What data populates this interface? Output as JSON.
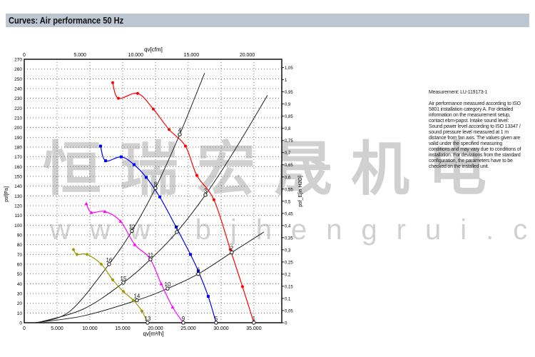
{
  "header": {
    "title": "Curves: Air performance 50 Hz"
  },
  "info": {
    "measurement": "Measurement: LU-119173-1",
    "lines": [
      "Air performance measured according to ISO",
      "5801 installation category A. For detailed",
      "information on the measurement setup,",
      "contact ebm-papst. Intake sound level:",
      "Sound power level according to ISO 13347 /",
      "sound pressure level measured at 1 m",
      "distance from fan axis. The values given are",
      "valid under the specified measuring",
      "conditions and may vary due to conditions of",
      "installation. For deviations from the standard",
      "configuration, the parameters have to be",
      "checked on the installed unit."
    ]
  },
  "watermark": {
    "text": "恒瑞宏晟机电",
    "url": "www.bjhengrui.cn"
  },
  "chart_data": {
    "type": "line",
    "xlabel": "qv[m³/h]",
    "x2label": "qv[cfm]",
    "ylabel": "psf[Pa]",
    "y2label": "psf_E[in H2O]",
    "xlim": [
      0,
      39250
    ],
    "ylim": [
      0,
      270
    ],
    "y2lim": [
      0,
      1.084
    ],
    "xticks": [
      0,
      5000,
      10000,
      15000,
      20000,
      25000,
      30000,
      35000
    ],
    "xtick_labels": [
      "0",
      "5.000",
      "10.000",
      "15.000",
      "20.000",
      "25.000",
      "30.000",
      "35.000"
    ],
    "x2ticks": [
      0,
      5000,
      10000,
      15000,
      20000
    ],
    "x2tick_labels": [
      "0",
      "5.000",
      "10.000",
      "15.000",
      "20.000"
    ],
    "y2ticks": [
      0,
      0.05,
      0.1,
      0.15,
      0.2,
      0.25,
      0.3,
      0.35,
      0.4,
      0.45,
      0.5,
      0.55,
      0.6,
      0.65,
      0.7,
      0.75,
      0.8,
      0.85,
      0.9,
      0.95,
      1,
      1.05
    ],
    "y2tick_labels": [
      "0",
      "0,05",
      "0,1",
      "0,15",
      "0,2",
      "0,25",
      "0,3",
      "0,35",
      "0,4",
      "0,45",
      "0,5",
      "0,55",
      "0,6",
      "0,65",
      "0,7",
      "0,75",
      "0,8",
      "0,85",
      "0,9",
      "0,95",
      "1",
      "1,05"
    ],
    "grid": true,
    "series": [
      {
        "color": "#ff0000",
        "marker": "circle",
        "points": [
          [
            13480,
            246
          ],
          [
            14350,
            230
          ],
          [
            17280,
            235
          ],
          [
            19670,
            219
          ],
          [
            22070,
            198
          ],
          [
            24570,
            181
          ],
          [
            26300,
            151
          ],
          [
            28910,
            126
          ],
          [
            31410,
            75
          ],
          [
            33260,
            37
          ],
          [
            35000,
            0
          ]
        ]
      },
      {
        "color": "#0000ff",
        "marker": "square",
        "points": [
          [
            11630,
            181
          ],
          [
            12390,
            166
          ],
          [
            14780,
            170
          ],
          [
            16740,
            162
          ],
          [
            18590,
            149
          ],
          [
            20650,
            129
          ],
          [
            23150,
            98
          ],
          [
            25330,
            70
          ],
          [
            26520,
            53
          ],
          [
            28040,
            27
          ],
          [
            29240,
            0
          ]
        ]
      },
      {
        "color": "#ff00ff",
        "marker": "triangle",
        "points": [
          [
            9460,
            122
          ],
          [
            10220,
            113
          ],
          [
            12280,
            114
          ],
          [
            14670,
            104
          ],
          [
            16850,
            80
          ],
          [
            19130,
            66
          ],
          [
            20870,
            40
          ],
          [
            22610,
            16
          ],
          [
            24240,
            0
          ]
        ]
      },
      {
        "color": "#999900",
        "marker": "diamond",
        "points": [
          [
            7500,
            75
          ],
          [
            8040,
            70
          ],
          [
            9570,
            70
          ],
          [
            11740,
            60
          ],
          [
            13480,
            44
          ],
          [
            15110,
            32
          ],
          [
            16630,
            23
          ],
          [
            17930,
            12
          ],
          [
            18800,
            0
          ]
        ]
      }
    ],
    "system_curves": [
      {
        "color": "#222222",
        "points": [
          [
            2000,
            0
          ],
          [
            7000,
            12
          ],
          [
            12930,
            60
          ],
          [
            16410,
            94
          ],
          [
            20000,
            138
          ],
          [
            23700,
            193
          ],
          [
            27500,
            256
          ]
        ]
      },
      {
        "color": "#222222",
        "points": [
          [
            2000,
            0
          ],
          [
            9000,
            14
          ],
          [
            15110,
            41
          ],
          [
            19240,
            65
          ],
          [
            23260,
            93
          ],
          [
            27610,
            131
          ],
          [
            32000,
            176
          ],
          [
            37070,
            233
          ]
        ]
      },
      {
        "color": "#222222",
        "points": [
          [
            1500,
            0
          ],
          [
            9000,
            7
          ],
          [
            17170,
            23
          ],
          [
            21850,
            35
          ],
          [
            26520,
            50
          ],
          [
            31630,
            72
          ],
          [
            36520,
            93
          ]
        ]
      }
    ],
    "operating_points": [
      {
        "label": "1",
        "q": 35000,
        "p": 0
      },
      {
        "label": "2",
        "q": 31630,
        "p": 72
      },
      {
        "label": "3",
        "q": 27610,
        "p": 131
      },
      {
        "label": "4",
        "q": 23700,
        "p": 193
      },
      {
        "label": "5",
        "q": 29240,
        "p": 0
      },
      {
        "label": "6",
        "q": 26520,
        "p": 50
      },
      {
        "label": "7",
        "q": 23260,
        "p": 93
      },
      {
        "label": "8",
        "q": 20000,
        "p": 138
      },
      {
        "label": "9",
        "q": 24240,
        "p": 0
      },
      {
        "label": "10",
        "q": 21850,
        "p": 35
      },
      {
        "label": "11",
        "q": 19240,
        "p": 65
      },
      {
        "label": "12",
        "q": 16410,
        "p": 94
      },
      {
        "label": "13",
        "q": 18800,
        "p": 0
      },
      {
        "label": "14",
        "q": 17170,
        "p": 23
      },
      {
        "label": "15",
        "q": 15110,
        "p": 41
      },
      {
        "label": "16",
        "q": 12930,
        "p": 60
      }
    ]
  }
}
